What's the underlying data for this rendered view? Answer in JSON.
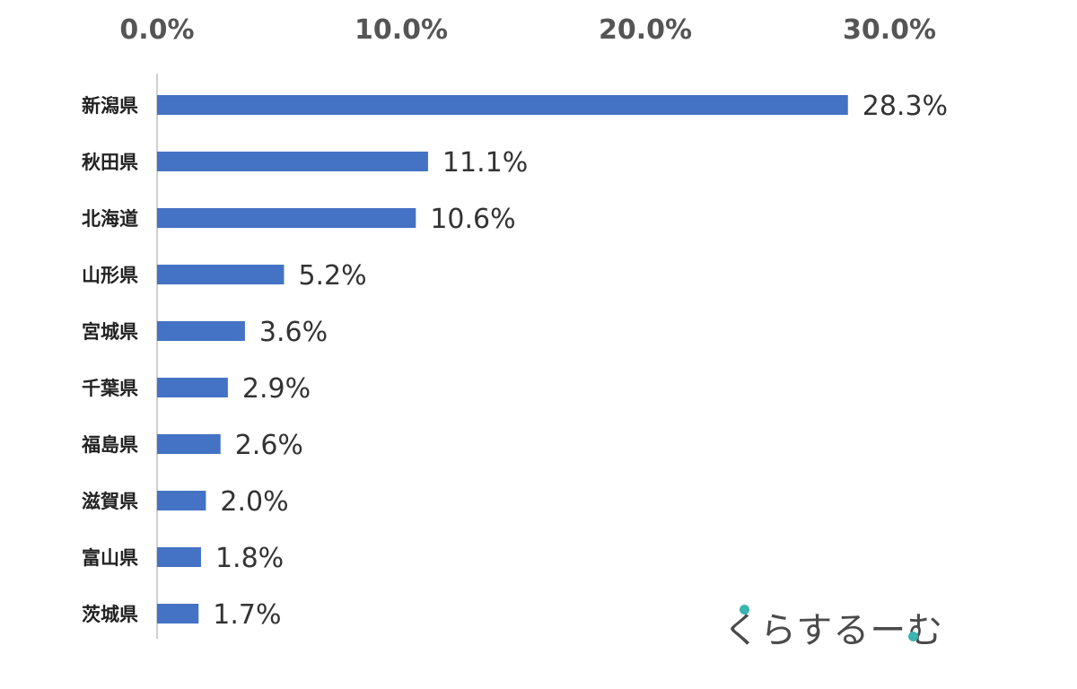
{
  "chart_data": {
    "type": "bar",
    "orientation": "horizontal",
    "title": "",
    "xlabel": "",
    "ylabel": "",
    "xlim": [
      0,
      30
    ],
    "x_ticks": [
      "0.0%",
      "10.0%",
      "20.0%",
      "30.0%"
    ],
    "x_tick_values": [
      0,
      10,
      20,
      30
    ],
    "axis_position": "top",
    "grid": false,
    "legend": "none",
    "categories": [
      "新潟県",
      "秋田県",
      "北海道",
      "山形県",
      "宮城県",
      "千葉県",
      "福島県",
      "滋賀県",
      "富山県",
      "茨城県"
    ],
    "values": [
      28.3,
      11.1,
      10.6,
      5.2,
      3.6,
      2.9,
      2.6,
      2.0,
      1.8,
      1.7
    ],
    "data_labels": [
      "28.3%",
      "11.1%",
      "10.6%",
      "5.2%",
      "3.6%",
      "2.9%",
      "2.6%",
      "2.0%",
      "1.8%",
      "1.7%"
    ],
    "bar_color": "#4472c4",
    "axis_color": "#d0d0d0"
  },
  "watermark": {
    "text": "くらするーむ",
    "dot_color": "#3ab5b0"
  }
}
